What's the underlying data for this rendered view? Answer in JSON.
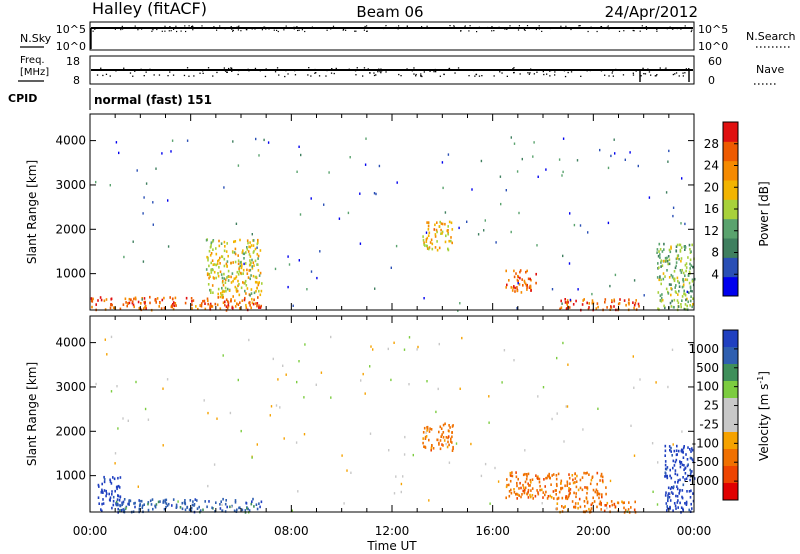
{
  "header": {
    "left_title": "Halley (fitACF)",
    "center_title": "Beam 06",
    "right_title": "24/Apr/2012"
  },
  "panels": {
    "nsky": {
      "label": "N.Sky",
      "tick_top": "10^5",
      "tick_bottom": "10^0",
      "right_label": "N.Search",
      "right_tick_top": "10^5",
      "right_tick_bottom": "10^0"
    },
    "freq": {
      "label_line1": "Freq.",
      "label_line2": "[MHz]",
      "tick_top": "18",
      "tick_bottom": "8",
      "right_label": "Nave",
      "right_tick_top": "60",
      "right_tick_bottom": "0"
    },
    "cpid": {
      "label": "CPID",
      "value": "normal (fast) 151"
    }
  },
  "colors": {
    "power_scale": [
      "#0000ee",
      "#2a4fb5",
      "#3f7f5f",
      "#5aa36e",
      "#a8d13a",
      "#f2b400",
      "#f58a00",
      "#ee5a00",
      "#e01010"
    ],
    "velocity_scale": [
      "#e00000",
      "#ee4400",
      "#f07000",
      "#f5a200",
      "#c8c8c8",
      "#c8c8c8",
      "#7ccc40",
      "#3f8f5a",
      "#2f5fb0",
      "#2040c0"
    ]
  },
  "chart_data": [
    {
      "type": "heatmap",
      "title": "",
      "xlabel": "",
      "ylabel": "Slant Range [km]",
      "x_ticks": [
        "00:00",
        "04:00",
        "08:00",
        "12:00",
        "16:00",
        "20:00",
        "00:00"
      ],
      "y_ticks": [
        1000,
        2000,
        3000,
        4000
      ],
      "xlim_hours": [
        0,
        24
      ],
      "ylim_km": [
        180,
        4600
      ],
      "colorbar": {
        "label": "Power [dB]",
        "ticks": [
          4,
          8,
          12,
          16,
          20,
          24,
          28
        ],
        "range": [
          0,
          32
        ]
      },
      "features": [
        {
          "hour_start": 0.0,
          "hour_end": 6.8,
          "range_start_km": 200,
          "range_end_km": 500,
          "level_db": 26
        },
        {
          "hour_start": 4.6,
          "hour_end": 6.8,
          "range_start_km": 500,
          "range_end_km": 1800,
          "level_db": 18
        },
        {
          "hour_start": 13.2,
          "hour_end": 14.4,
          "range_start_km": 1550,
          "range_end_km": 2200,
          "level_db": 20
        },
        {
          "hour_start": 16.5,
          "hour_end": 17.7,
          "range_start_km": 600,
          "range_end_km": 1100,
          "level_db": 26
        },
        {
          "hour_start": 18.5,
          "hour_end": 21.8,
          "range_start_km": 200,
          "range_end_km": 450,
          "level_db": 27
        },
        {
          "hour_start": 22.5,
          "hour_end": 24.0,
          "range_start_km": 200,
          "range_end_km": 1700,
          "level_db": 14
        }
      ]
    },
    {
      "type": "heatmap",
      "title": "",
      "xlabel": "Time UT",
      "ylabel": "Slant Range [km]",
      "x_ticks": [
        "00:00",
        "04:00",
        "08:00",
        "12:00",
        "16:00",
        "20:00",
        "00:00"
      ],
      "y_ticks": [
        1000,
        2000,
        3000,
        4000
      ],
      "xlim_hours": [
        0,
        24
      ],
      "ylim_km": [
        180,
        4600
      ],
      "colorbar": {
        "label": "Velocity [m s^-1]",
        "ticks": [
          1000,
          500,
          100,
          25,
          -25,
          -100,
          -500,
          -1000
        ]
      },
      "features": [
        {
          "hour_start": 0.3,
          "hour_end": 1.2,
          "range_start_km": 200,
          "range_end_km": 1000,
          "velocity_ms": 700
        },
        {
          "hour_start": 1.0,
          "hour_end": 6.8,
          "range_start_km": 200,
          "range_end_km": 500,
          "velocity_ms": 120
        },
        {
          "hour_start": 13.2,
          "hour_end": 14.4,
          "range_start_km": 1550,
          "range_end_km": 2200,
          "velocity_ms": -300
        },
        {
          "hour_start": 16.5,
          "hour_end": 20.5,
          "range_start_km": 500,
          "range_end_km": 1100,
          "velocity_ms": -300
        },
        {
          "hour_start": 18.5,
          "hour_end": 21.8,
          "range_start_km": 200,
          "range_end_km": 450,
          "velocity_ms": -250
        },
        {
          "hour_start": 22.8,
          "hour_end": 24.0,
          "range_start_km": 200,
          "range_end_km": 1700,
          "velocity_ms": 700
        }
      ]
    }
  ]
}
